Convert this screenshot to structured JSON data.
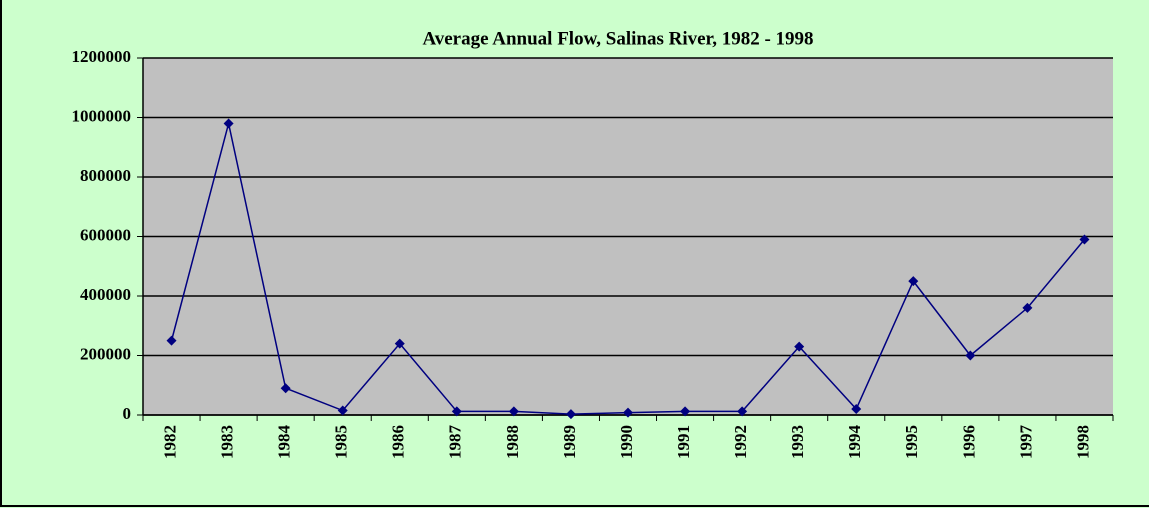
{
  "chart_data": {
    "type": "line",
    "title": "Average Annual Flow, Salinas River, 1982 - 1998",
    "categories": [
      "1982",
      "1983",
      "1984",
      "1985",
      "1986",
      "1987",
      "1988",
      "1989",
      "1990",
      "1991",
      "1992",
      "1993",
      "1994",
      "1995",
      "1996",
      "1997",
      "1998"
    ],
    "series": [
      {
        "name": "Average Annual Flow",
        "color": "#000080",
        "values": [
          250000,
          980000,
          90000,
          15000,
          240000,
          12000,
          12000,
          3000,
          8000,
          12000,
          12000,
          230000,
          20000,
          450000,
          200000,
          360000,
          590000
        ]
      }
    ],
    "ylim": [
      0,
      1200000
    ],
    "yticks": [
      0,
      200000,
      400000,
      600000,
      800000,
      1000000,
      1200000
    ],
    "grid": true
  }
}
